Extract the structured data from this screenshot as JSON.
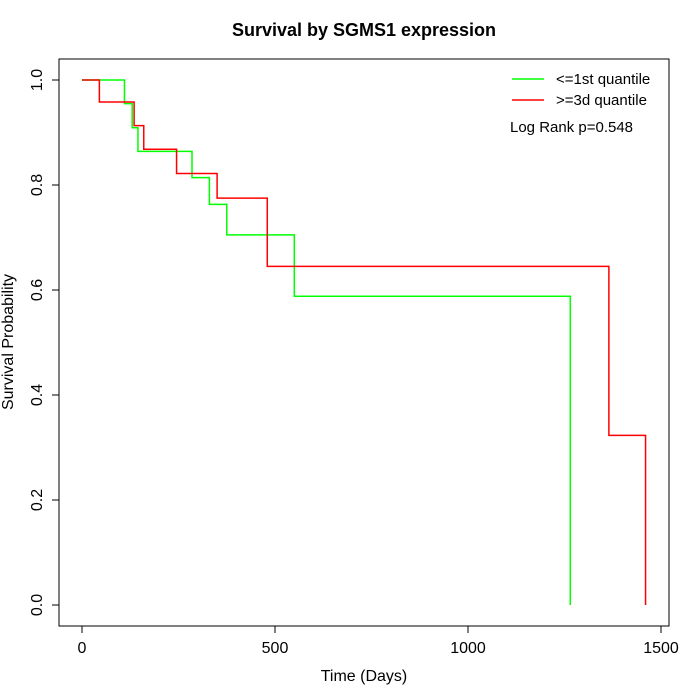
{
  "chart_data": {
    "type": "line",
    "title": "Survival by SGMS1 expression",
    "xlabel": "Time (Days)",
    "ylabel": "Survival Probability",
    "xlim": [
      0,
      1500
    ],
    "ylim": [
      0,
      1
    ],
    "x_ticks": [
      0,
      500,
      1000,
      1500
    ],
    "y_ticks": [
      0.0,
      0.2,
      0.4,
      0.6,
      0.8,
      1.0
    ],
    "x_tick_labels": [
      "0",
      "500",
      "1000",
      "1500"
    ],
    "y_tick_labels": [
      "0.0",
      "0.2",
      "0.4",
      "0.6",
      "0.8",
      "1.0"
    ],
    "grid": false,
    "legend_position": "top-right",
    "annotation": "Log Rank p=0.548",
    "series": [
      {
        "name": "<=1st quantile",
        "color": "#00ff00",
        "step": true,
        "x": [
          0,
          110,
          130,
          145,
          285,
          330,
          375,
          550,
          1265,
          1265
        ],
        "y": [
          1.0,
          0.955,
          0.909,
          0.864,
          0.814,
          0.763,
          0.705,
          0.588,
          0.588,
          0.0
        ]
      },
      {
        "name": ">=3d quantile",
        "color": "#ff0000",
        "step": true,
        "x": [
          0,
          45,
          135,
          160,
          245,
          350,
          480,
          1365,
          1460,
          1460
        ],
        "y": [
          1.0,
          0.958,
          0.913,
          0.868,
          0.822,
          0.775,
          0.645,
          0.323,
          0.323,
          0.0
        ]
      }
    ]
  }
}
